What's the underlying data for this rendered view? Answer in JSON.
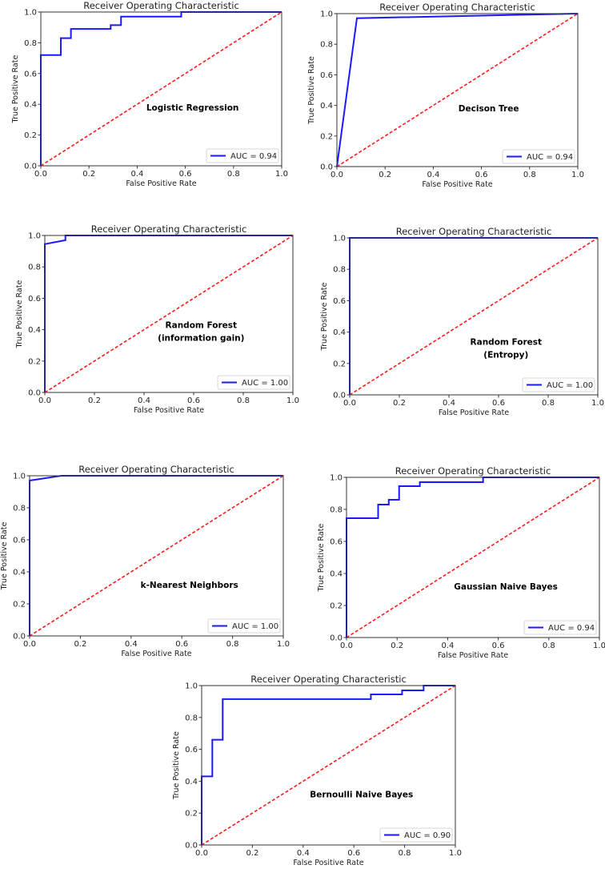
{
  "chart_data": [
    {
      "type": "line",
      "title": "Receiver Operating Characteristic",
      "xlabel": "False Positive Rate",
      "ylabel": "True Positive Rate",
      "xlim": [
        0,
        1
      ],
      "ylim": [
        0,
        1
      ],
      "xticks": [
        "0.0",
        "0.2",
        "0.4",
        "0.6",
        "0.8",
        "1.0"
      ],
      "yticks": [
        "0.0",
        "0.2",
        "0.4",
        "0.6",
        "0.8",
        "1.0"
      ],
      "annotation": [
        "Logistic Regression"
      ],
      "legend": {
        "label": "AUC = 0.94",
        "placement": "lower-right"
      },
      "series": [
        {
          "name": "AUC = 0.94",
          "color": "#1a1aff",
          "style": "solid",
          "x": [
            0,
            0,
            0.083,
            0.083,
            0.125,
            0.125,
            0.29,
            0.29,
            0.333,
            0.333,
            0.583,
            0.583,
            1
          ],
          "y": [
            0,
            0.72,
            0.72,
            0.83,
            0.83,
            0.89,
            0.89,
            0.915,
            0.915,
            0.97,
            0.97,
            1.0,
            1.0
          ]
        },
        {
          "name": "chance",
          "color": "#ff1a1a",
          "style": "dashed",
          "x": [
            0,
            1
          ],
          "y": [
            0,
            1
          ]
        }
      ]
    },
    {
      "type": "line",
      "title": "Receiver Operating Characteristic",
      "xlabel": "False Positive Rate",
      "ylabel": "True Positive Rate",
      "xlim": [
        0,
        1
      ],
      "ylim": [
        0,
        1
      ],
      "xticks": [
        "0.0",
        "0.2",
        "0.4",
        "0.6",
        "0.8",
        "1.0"
      ],
      "yticks": [
        "0.0",
        "0.2",
        "0.4",
        "0.6",
        "0.8",
        "1.0"
      ],
      "annotation": [
        "Decison Tree"
      ],
      "legend": {
        "label": "AUC = 0.94",
        "placement": "lower-right"
      },
      "series": [
        {
          "name": "AUC = 0.94",
          "color": "#1a1aff",
          "style": "solid",
          "x": [
            0,
            0.083,
            1
          ],
          "y": [
            0,
            0.97,
            1.0
          ]
        },
        {
          "name": "chance",
          "color": "#ff1a1a",
          "style": "dashed",
          "x": [
            0,
            1
          ],
          "y": [
            0,
            1
          ]
        }
      ]
    },
    {
      "type": "line",
      "title": "Receiver Operating Characteristic",
      "xlabel": "False Positive Rate",
      "ylabel": "True Positive Rate",
      "xlim": [
        0,
        1
      ],
      "ylim": [
        0,
        1
      ],
      "xticks": [
        "0.0",
        "0.2",
        "0.4",
        "0.6",
        "0.8",
        "1.0"
      ],
      "yticks": [
        "0.0",
        "0.2",
        "0.4",
        "0.6",
        "0.8",
        "1.0"
      ],
      "annotation": [
        "Random Forest",
        "(information gain)"
      ],
      "legend": {
        "label": "AUC = 1.00",
        "placement": "lower-right"
      },
      "series": [
        {
          "name": "AUC = 1.00",
          "color": "#1a1aff",
          "style": "solid",
          "x": [
            0,
            0,
            0.083,
            0.083,
            1
          ],
          "y": [
            0,
            0.945,
            0.97,
            1.0,
            1.0
          ]
        },
        {
          "name": "chance",
          "color": "#ff1a1a",
          "style": "dashed",
          "x": [
            0,
            1
          ],
          "y": [
            0,
            1
          ]
        }
      ]
    },
    {
      "type": "line",
      "title": "Receiver Operating Characteristic",
      "xlabel": "False Positive Rate",
      "ylabel": "True Positive Rate",
      "xlim": [
        0,
        1
      ],
      "ylim": [
        0,
        1
      ],
      "xticks": [
        "0.0",
        "0.2",
        "0.4",
        "0.6",
        "0.8",
        "1.0"
      ],
      "yticks": [
        "0.0",
        "0.2",
        "0.4",
        "0.6",
        "0.8",
        "1.0"
      ],
      "annotation": [
        "Random Forest",
        "(Entropy)"
      ],
      "legend": {
        "label": "AUC = 1.00",
        "placement": "lower-right"
      },
      "series": [
        {
          "name": "AUC = 1.00",
          "color": "#1a1aff",
          "style": "solid",
          "x": [
            0,
            0,
            1
          ],
          "y": [
            0,
            1.0,
            1.0
          ]
        },
        {
          "name": "chance",
          "color": "#ff1a1a",
          "style": "dashed",
          "x": [
            0,
            1
          ],
          "y": [
            0,
            1
          ]
        }
      ]
    },
    {
      "type": "line",
      "title": "Receiver Operating Characteristic",
      "xlabel": "False Positive Rate",
      "ylabel": "True Positive Rate",
      "xlim": [
        0,
        1
      ],
      "ylim": [
        0,
        1
      ],
      "xticks": [
        "0.0",
        "0.2",
        "0.4",
        "0.6",
        "0.8",
        "1.0"
      ],
      "yticks": [
        "0.0",
        "0.2",
        "0.4",
        "0.6",
        "0.8",
        "1.0"
      ],
      "annotation": [
        "k-Nearest Neighbors"
      ],
      "legend": {
        "label": "AUC = 1.00",
        "placement": "lower-right"
      },
      "series": [
        {
          "name": "AUC = 1.00",
          "color": "#1a1aff",
          "style": "solid",
          "x": [
            0,
            0,
            0.125,
            1
          ],
          "y": [
            0,
            0.97,
            1.0,
            1.0
          ]
        },
        {
          "name": "chance",
          "color": "#ff1a1a",
          "style": "dashed",
          "x": [
            0,
            1
          ],
          "y": [
            0,
            1
          ]
        }
      ]
    },
    {
      "type": "line",
      "title": "Receiver Operating Characteristic",
      "xlabel": "False Positive Rate",
      "ylabel": "True Positive Rate",
      "xlim": [
        0,
        1
      ],
      "ylim": [
        0,
        1
      ],
      "xticks": [
        "0.0",
        "0.2",
        "0.4",
        "0.6",
        "0.8",
        "1.0"
      ],
      "yticks": [
        "0.0",
        "0.2",
        "0.4",
        "0.6",
        "0.8",
        "1.0"
      ],
      "annotation": [
        "Gaussian Naive Bayes"
      ],
      "legend": {
        "label": "AUC = 0.94",
        "placement": "lower-right"
      },
      "series": [
        {
          "name": "AUC = 0.94",
          "color": "#1a1aff",
          "style": "solid",
          "x": [
            0,
            0,
            0.125,
            0.125,
            0.167,
            0.167,
            0.208,
            0.208,
            0.29,
            0.29,
            0.54,
            0.54,
            1
          ],
          "y": [
            0,
            0.745,
            0.745,
            0.83,
            0.83,
            0.86,
            0.86,
            0.945,
            0.945,
            0.97,
            0.97,
            1.0,
            1.0
          ]
        },
        {
          "name": "chance",
          "color": "#ff1a1a",
          "style": "dashed",
          "x": [
            0,
            1
          ],
          "y": [
            0,
            1
          ]
        }
      ]
    },
    {
      "type": "line",
      "title": "Receiver Operating Characteristic",
      "xlabel": "False Positive Rate",
      "ylabel": "True Positive Rate",
      "xlim": [
        0,
        1
      ],
      "ylim": [
        0,
        1
      ],
      "xticks": [
        "0.0",
        "0.2",
        "0.4",
        "0.6",
        "0.8",
        "1.0"
      ],
      "yticks": [
        "0.0",
        "0.2",
        "0.4",
        "0.6",
        "0.8",
        "1.0"
      ],
      "annotation": [
        "Bernoulli Naive Bayes"
      ],
      "legend": {
        "label": "AUC = 0.90",
        "placement": "lower-right"
      },
      "series": [
        {
          "name": "AUC = 0.90",
          "color": "#1a1aff",
          "style": "solid",
          "x": [
            0,
            0,
            0.042,
            0.042,
            0.083,
            0.083,
            0.667,
            0.667,
            0.79,
            0.79,
            0.875,
            0.875,
            1
          ],
          "y": [
            0,
            0.43,
            0.43,
            0.66,
            0.66,
            0.915,
            0.915,
            0.945,
            0.945,
            0.97,
            0.97,
            1.0,
            1.0
          ]
        },
        {
          "name": "chance",
          "color": "#ff1a1a",
          "style": "dashed",
          "x": [
            0,
            1
          ],
          "y": [
            0,
            1
          ]
        }
      ]
    }
  ]
}
